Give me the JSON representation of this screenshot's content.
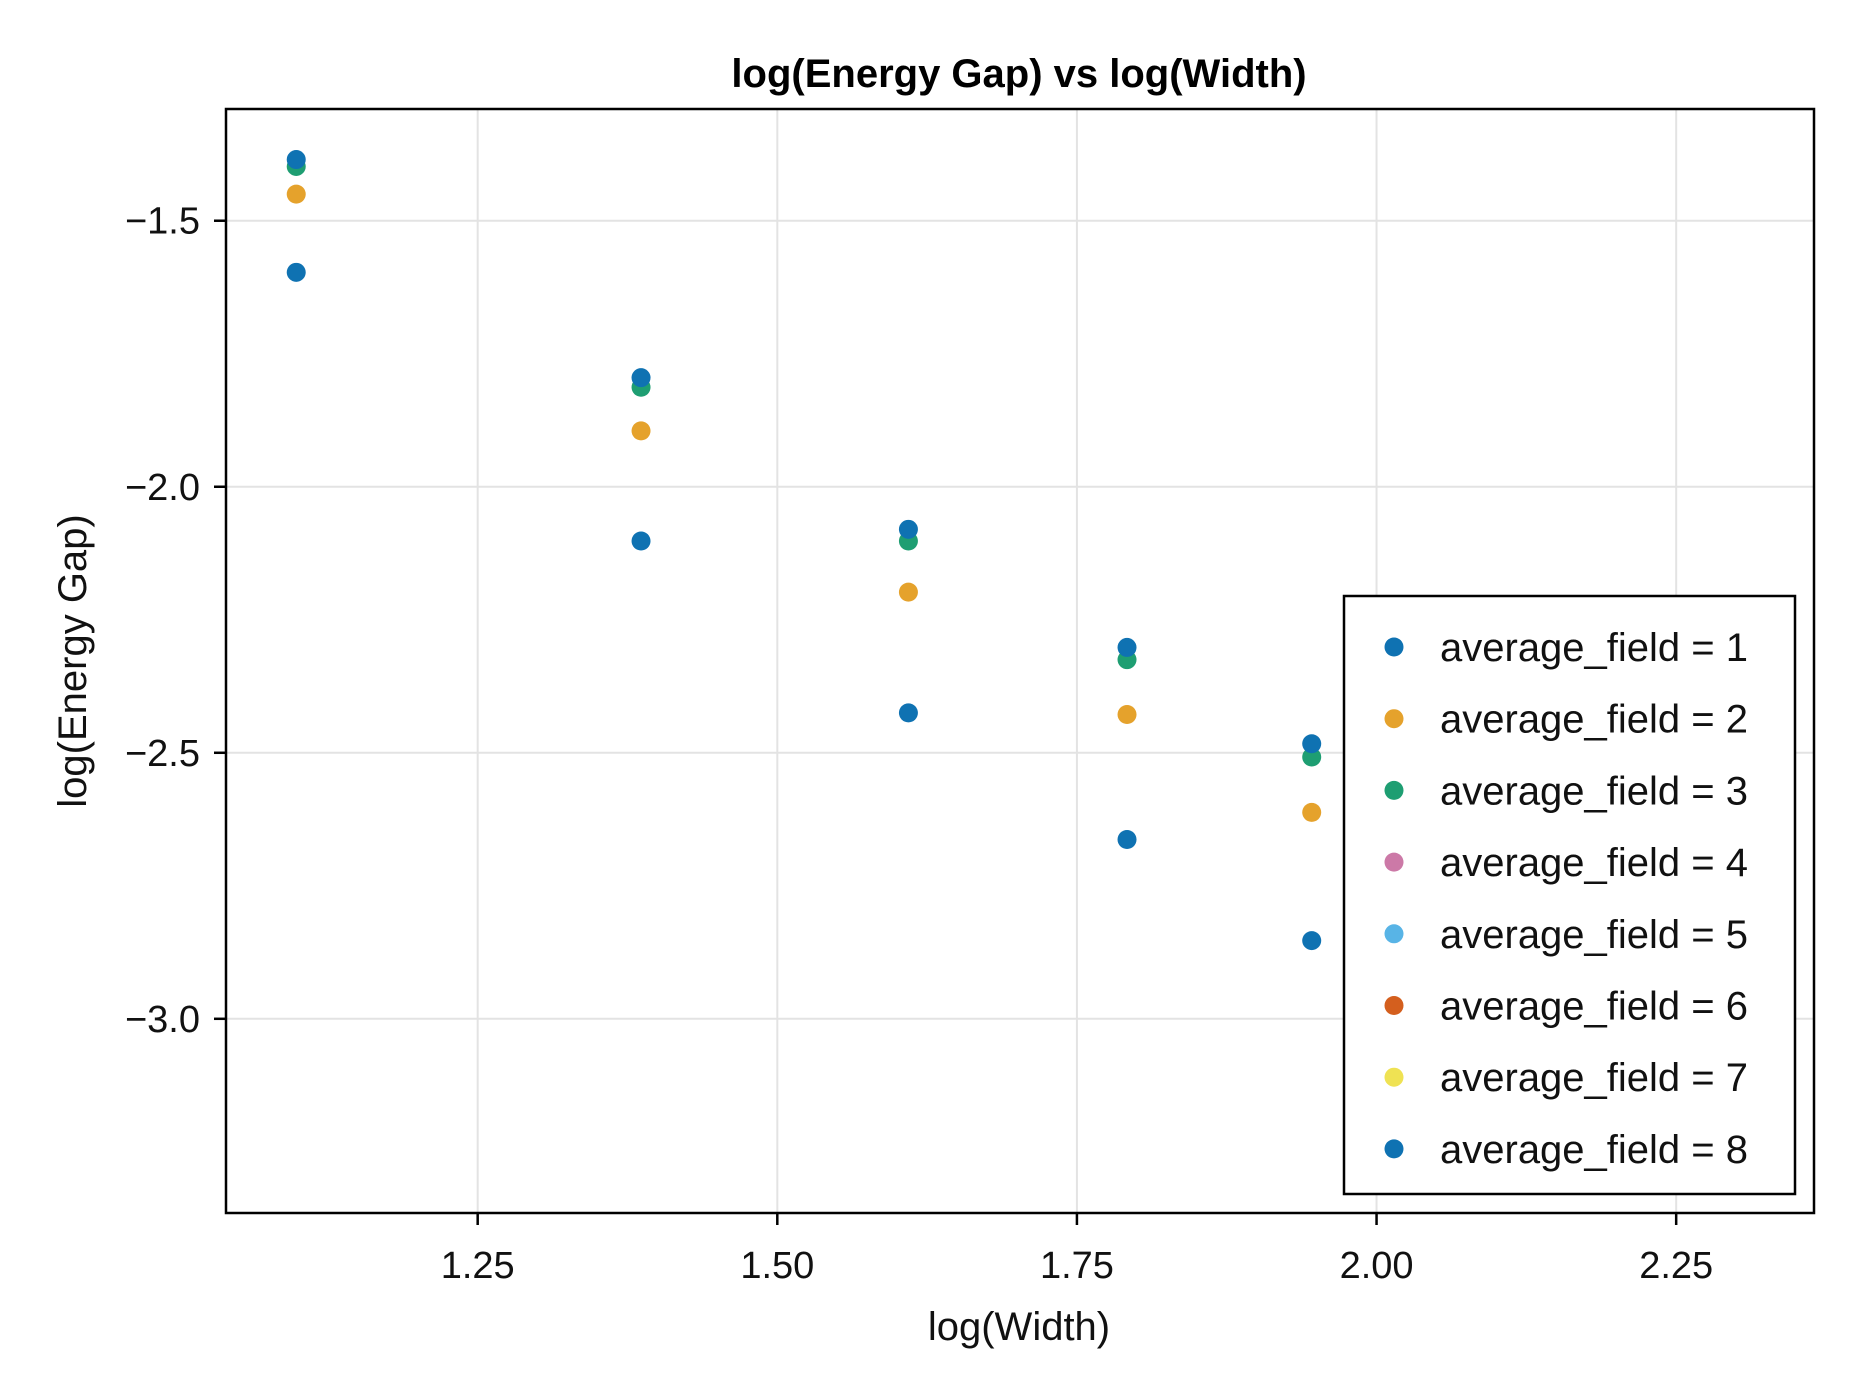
{
  "chart_data": {
    "type": "scatter",
    "title": "log(Energy Gap) vs log(Width)",
    "xlabel": "log(Width)",
    "ylabel": "log(Energy Gap)",
    "xlim": [
      1.04,
      2.365
    ],
    "ylim": [
      -3.365,
      -1.29
    ],
    "xticks": [
      1.25,
      1.5,
      1.75,
      2.0,
      2.25
    ],
    "xtick_labels": [
      "1.25",
      "1.50",
      "1.75",
      "2.00",
      "2.25"
    ],
    "yticks": [
      -1.5,
      -2.0,
      -2.5,
      -3.0
    ],
    "ytick_labels": [
      "−1.5",
      "−2.0",
      "−2.5",
      "−3.0"
    ],
    "grid": true,
    "legend_position": "bottom-right",
    "x": [
      1.0986,
      1.3863,
      1.6094,
      1.7918,
      1.9459
    ],
    "series": [
      {
        "name": "average_field = 1",
        "color": "#0f72b2",
        "values": [
          -1.597,
          -2.102,
          -2.425,
          -2.663,
          -2.853
        ]
      },
      {
        "name": "average_field = 2",
        "color": "#e5a22c",
        "values": [
          -1.45,
          -1.895,
          -2.198,
          -2.428,
          -2.612
        ]
      },
      {
        "name": "average_field = 3",
        "color": "#1e9e72",
        "values": [
          -1.398,
          -1.813,
          -2.102,
          -2.325,
          -2.508
        ]
      },
      {
        "name": "average_field = 4",
        "color": "#cc79a7",
        "values": []
      },
      {
        "name": "average_field = 5",
        "color": "#58b4e6",
        "values": []
      },
      {
        "name": "average_field = 6",
        "color": "#d45f1e",
        "values": []
      },
      {
        "name": "average_field = 7",
        "color": "#efe253",
        "values": []
      },
      {
        "name": "average_field = 8",
        "color": "#0f72b2",
        "values": [
          -1.385,
          -1.795,
          -2.08,
          -2.302,
          -2.483
        ]
      }
    ]
  }
}
